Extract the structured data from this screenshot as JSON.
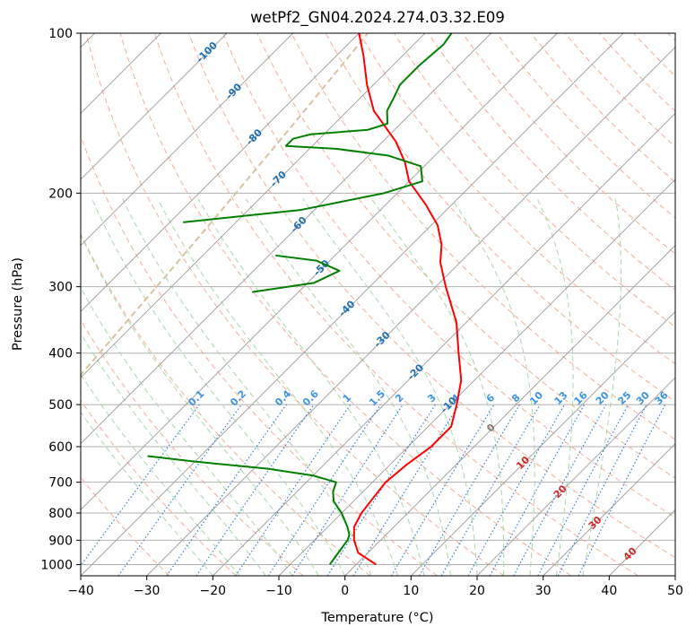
{
  "chart_data": {
    "type": "line",
    "title": "wetPf2_GN04.2024.274.03.32.E09",
    "xlabel": "Temperature (°C)",
    "ylabel": "Pressure (hPa)",
    "xlim": [
      -40,
      50
    ],
    "ylim": [
      1050,
      100
    ],
    "y_scale": "log",
    "x_ticks": [
      -40,
      -30,
      -20,
      -10,
      0,
      10,
      20,
      30,
      40,
      50
    ],
    "x_tick_labels": [
      "−40",
      "−30",
      "−20",
      "−10",
      "0",
      "10",
      "20",
      "30",
      "40",
      "50"
    ],
    "y_ticks": [
      1000,
      900,
      800,
      700,
      600,
      500,
      400,
      300,
      200,
      100
    ],
    "y_tick_labels": [
      "1000",
      "900",
      "800",
      "700",
      "600",
      "500",
      "400",
      "300",
      "200",
      "100"
    ],
    "grid": true,
    "series": [
      {
        "role": "temperature",
        "color": "#ff0000",
        "points": [
          {
            "p": 1000,
            "t": 3.0
          },
          {
            "p": 950,
            "t": -1.5
          },
          {
            "p": 900,
            "t": -4.0
          },
          {
            "p": 850,
            "t": -6.0
          },
          {
            "p": 800,
            "t": -7.0
          },
          {
            "p": 750,
            "t": -7.5
          },
          {
            "p": 700,
            "t": -8.0
          },
          {
            "p": 650,
            "t": -7.5
          },
          {
            "p": 600,
            "t": -6.5
          },
          {
            "p": 550,
            "t": -6.5
          },
          {
            "p": 500,
            "t": -9.0
          },
          {
            "p": 450,
            "t": -12.0
          },
          {
            "p": 400,
            "t": -16.5
          },
          {
            "p": 350,
            "t": -21.5
          },
          {
            "p": 300,
            "t": -28.5
          },
          {
            "p": 270,
            "t": -33.0
          },
          {
            "p": 250,
            "t": -35.5
          },
          {
            "p": 230,
            "t": -39.0
          },
          {
            "p": 210,
            "t": -44.0
          },
          {
            "p": 190,
            "t": -50.0
          },
          {
            "p": 175,
            "t": -53.5
          },
          {
            "p": 160,
            "t": -58.0
          },
          {
            "p": 140,
            "t": -66.0
          },
          {
            "p": 125,
            "t": -71.0
          },
          {
            "p": 110,
            "t": -76.0
          },
          {
            "p": 100,
            "t": -80.0
          }
        ]
      },
      {
        "role": "dewpoint",
        "color": "#008000",
        "points": [
          {
            "p": 1000,
            "t": -4.0
          },
          {
            "p": 950,
            "t": -4.5
          },
          {
            "p": 900,
            "t": -5.0
          },
          {
            "p": 880,
            "t": -5.5
          },
          {
            "p": 850,
            "t": -7.0
          },
          {
            "p": 800,
            "t": -10.0
          },
          {
            "p": 760,
            "t": -13.0
          },
          {
            "p": 730,
            "t": -14.5
          },
          {
            "p": 700,
            "t": -15.5
          },
          {
            "p": 680,
            "t": -20.0
          },
          {
            "p": 660,
            "t": -28.0
          },
          {
            "p": 640,
            "t": -40.0
          },
          {
            "p": 625,
            "t": -48.0
          }
        ],
        "upper_points": [
          {
            "p": 307,
            "t": -57.0
          },
          {
            "p": 295,
            "t": -49.0
          },
          {
            "p": 280,
            "t": -47.0
          },
          {
            "p": 268,
            "t": -52.0
          },
          {
            "p": 262,
            "t": -59.0
          },
          {
            "p": 227,
            "t": -78.0
          },
          {
            "p": 215,
            "t": -62.0
          },
          {
            "p": 200,
            "t": -52.0
          },
          {
            "p": 190,
            "t": -48.0
          },
          {
            "p": 178,
            "t": -50.5
          },
          {
            "p": 170,
            "t": -57.0
          },
          {
            "p": 165,
            "t": -66.0
          },
          {
            "p": 163,
            "t": -74.0
          },
          {
            "p": 158,
            "t": -74.0
          },
          {
            "p": 155,
            "t": -72.0
          },
          {
            "p": 152,
            "t": -64.0
          },
          {
            "p": 148,
            "t": -62.0
          },
          {
            "p": 140,
            "t": -64.0
          },
          {
            "p": 132,
            "t": -65.0
          },
          {
            "p": 125,
            "t": -66.0
          },
          {
            "p": 115,
            "t": -66.0
          },
          {
            "p": 105,
            "t": -65.5
          },
          {
            "p": 100,
            "t": -66.0
          }
        ]
      }
    ],
    "mixing_ratio_labels": [
      "0.1",
      "0.2",
      "0.4",
      "0.6",
      "1",
      "1.5",
      "2",
      "3",
      "4",
      "6",
      "8",
      "10",
      "13",
      "16",
      "20",
      "25",
      "30",
      "36"
    ],
    "mixing_ratio_values": [
      0.1,
      0.2,
      0.4,
      0.6,
      1,
      1.5,
      2,
      3,
      4,
      6,
      8,
      10,
      13,
      16,
      20,
      25,
      30,
      36
    ],
    "isotherm_labels_blue": [
      {
        "text": "-100",
        "t": -100,
        "p": 108
      },
      {
        "text": "-90",
        "t": -90,
        "p": 128
      },
      {
        "text": "-80",
        "t": -80,
        "p": 156
      },
      {
        "text": "-70",
        "t": -70,
        "p": 187
      },
      {
        "text": "-60",
        "t": -60,
        "p": 228
      },
      {
        "text": "-50",
        "t": -50,
        "p": 275
      },
      {
        "text": "-40",
        "t": -40,
        "p": 328
      },
      {
        "text": "-30",
        "t": -30,
        "p": 375
      },
      {
        "text": "-20",
        "t": -20,
        "p": 432
      },
      {
        "text": "-10",
        "t": -10,
        "p": 498
      }
    ],
    "isotherm_labels_grey": [
      {
        "text": "0",
        "t": 0,
        "p": 550
      }
    ],
    "isotherm_labels_red": [
      {
        "text": "10",
        "t": 10,
        "p": 640
      },
      {
        "text": "20",
        "t": 20,
        "p": 725
      },
      {
        "text": "30",
        "t": 30,
        "p": 830
      },
      {
        "text": "40",
        "t": 40,
        "p": 950
      }
    ],
    "colors": {
      "temperature": "#ff0000",
      "dewpoint": "#008000",
      "isotherm_grid": "#9a9a9a",
      "dry_adiabat": "#f5ad94",
      "moist_adiabat": "#a6d9a6",
      "mixing_ratio": "#1f77d8",
      "label_blue": "#1f6fb4",
      "label_mixing": "#3b94e6",
      "label_red": "#d62728",
      "label_grey": "#808080",
      "tan_curve": "#d8c2a0"
    }
  }
}
